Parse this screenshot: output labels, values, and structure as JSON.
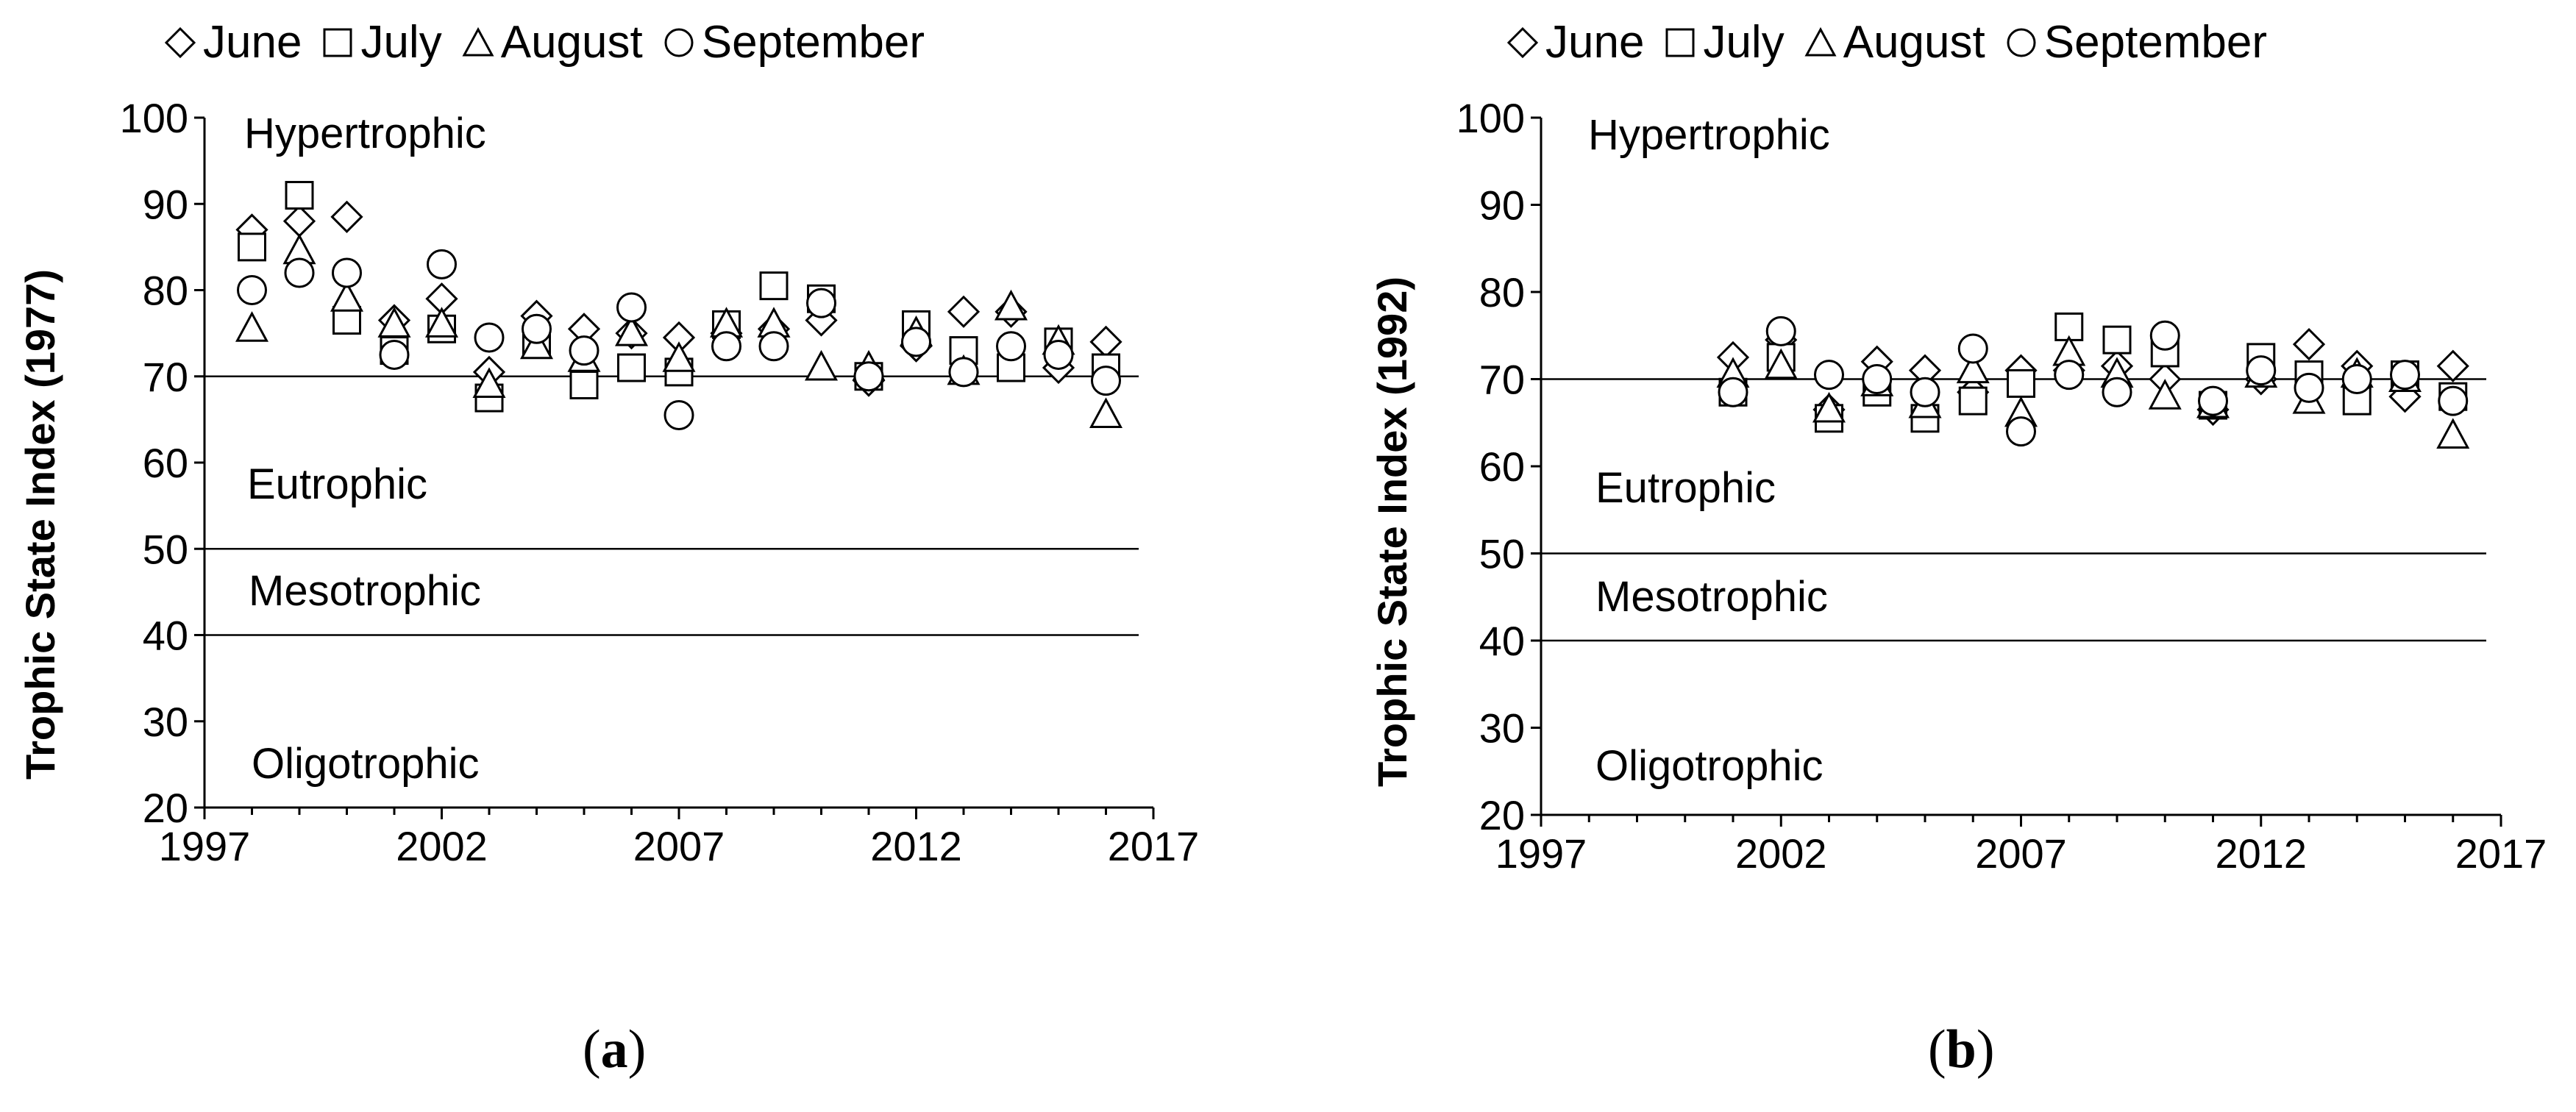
{
  "legend": {
    "items": [
      {
        "label": "June",
        "marker": "diamond"
      },
      {
        "label": "July",
        "marker": "square"
      },
      {
        "label": "August",
        "marker": "triangle"
      },
      {
        "label": "September",
        "marker": "circle"
      }
    ]
  },
  "panels": [
    {
      "caption_letter": "a"
    },
    {
      "caption_letter": "b"
    }
  ],
  "chart_data": [
    {
      "type": "scatter",
      "ylabel": "Trophic State Index (1977)",
      "xlabel": "",
      "xlim": [
        1997,
        2017
      ],
      "ylim": [
        20,
        100
      ],
      "xticks": [
        "1997",
        "2002",
        "2007",
        "2012",
        "2017"
      ],
      "yticks": [
        "20",
        "30",
        "40",
        "50",
        "60",
        "70",
        "80",
        "90",
        "100"
      ],
      "reference_lines": [
        70,
        50,
        40
      ],
      "zones": [
        "Hypertrophic",
        "Eutrophic",
        "Mesotrophic",
        "Oligotrophic"
      ],
      "x": [
        1998,
        1999,
        2000,
        2001,
        2002,
        2003,
        2004,
        2005,
        2006,
        2007,
        2008,
        2009,
        2010,
        2011,
        2012,
        2013,
        2014,
        2015,
        2016
      ],
      "series": [
        {
          "name": "June",
          "marker": "diamond",
          "values": [
            87,
            88,
            88.5,
            76.5,
            79,
            70.5,
            77,
            75.5,
            75,
            74.5,
            75,
            75.5,
            76.5,
            69.5,
            73.5,
            77.5,
            77.5,
            71,
            74
          ]
        },
        {
          "name": "July",
          "marker": "square",
          "values": [
            85,
            91,
            76.5,
            73,
            75.5,
            67.5,
            74,
            69,
            71,
            70.5,
            76,
            80.5,
            79,
            70,
            76,
            73,
            71,
            74,
            71
          ]
        },
        {
          "name": "August",
          "marker": "triangle",
          "values": [
            75.5,
            84.5,
            79,
            76,
            76,
            69,
            73.5,
            72,
            75,
            72,
            76,
            76,
            71,
            71,
            75,
            70.5,
            78,
            74,
            65.5
          ]
        },
        {
          "name": "September",
          "marker": "circle",
          "values": [
            80,
            82,
            82,
            72.5,
            83,
            74.5,
            75.5,
            73,
            78,
            65.5,
            73.5,
            73.5,
            78.5,
            70,
            74,
            70.5,
            73.5,
            72.5,
            69.5
          ]
        }
      ]
    },
    {
      "type": "scatter",
      "ylabel": "Trophic State Index (1992)",
      "xlabel": "",
      "xlim": [
        1997,
        2017
      ],
      "ylim": [
        20,
        100
      ],
      "xticks": [
        "1997",
        "2002",
        "2007",
        "2012",
        "2017"
      ],
      "yticks": [
        "20",
        "30",
        "40",
        "50",
        "60",
        "70",
        "80",
        "90",
        "100"
      ],
      "reference_lines": [
        70,
        50,
        40
      ],
      "zones": [
        "Hypertrophic",
        "Eutrophic",
        "Mesotrophic",
        "Oligotrophic"
      ],
      "x": [
        2001,
        2002,
        2003,
        2004,
        2005,
        2006,
        2007,
        2008,
        2009,
        2010,
        2011,
        2012,
        2013,
        2014,
        2015,
        2016
      ],
      "series": [
        {
          "name": "June",
          "marker": "diamond",
          "values": [
            72.5,
            74.5,
            66.5,
            72,
            71,
            68.5,
            71,
            71,
            71.5,
            70,
            66.5,
            70,
            74,
            71.5,
            68,
            71.5
          ]
        },
        {
          "name": "July",
          "marker": "square",
          "values": [
            68.5,
            72.5,
            65.5,
            68.5,
            65.5,
            67.5,
            69.5,
            76,
            74.5,
            73,
            67,
            72.5,
            70.5,
            67.5,
            70.5,
            68
          ]
        },
        {
          "name": "August",
          "marker": "triangle",
          "values": [
            70.5,
            71.5,
            66.5,
            69.5,
            67,
            71,
            66,
            73,
            70.5,
            68,
            67,
            70.5,
            67.5,
            70.5,
            70,
            63.5
          ]
        },
        {
          "name": "September",
          "marker": "circle",
          "values": [
            68.5,
            75.5,
            70.5,
            70,
            68.5,
            73.5,
            64,
            70.5,
            68.5,
            75,
            67.5,
            71,
            69,
            70,
            70.5,
            67.5
          ]
        }
      ]
    }
  ]
}
